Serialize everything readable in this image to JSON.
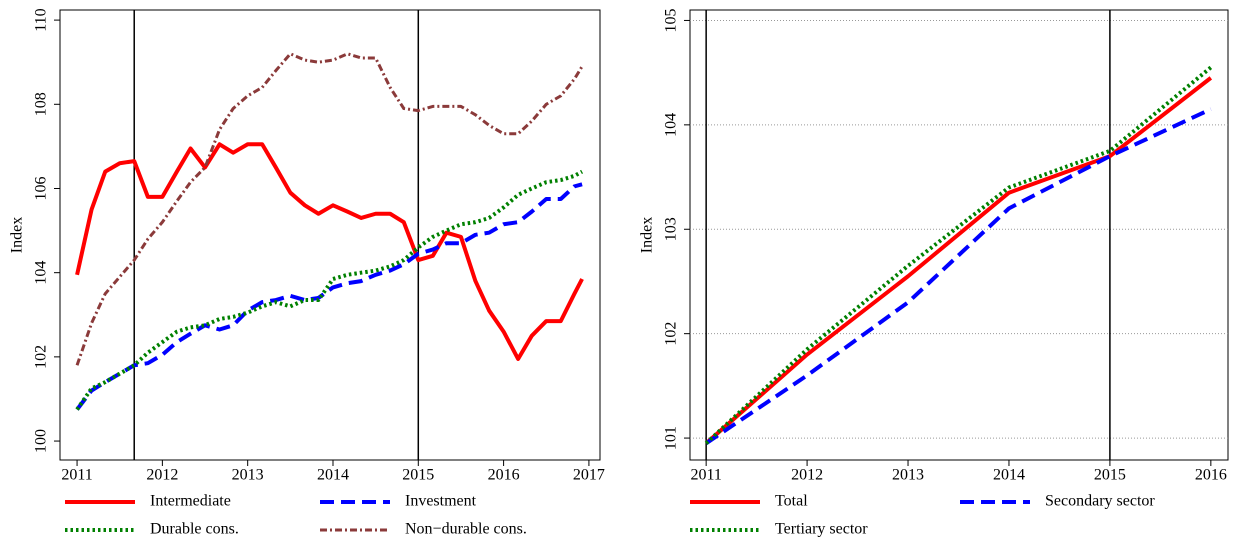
{
  "chart_data": [
    {
      "type": "line",
      "ylabel": "Index",
      "x": [
        2011,
        2011.17,
        2011.33,
        2011.5,
        2011.67,
        2011.83,
        2012,
        2012.17,
        2012.33,
        2012.5,
        2012.67,
        2012.83,
        2013,
        2013.17,
        2013.33,
        2013.5,
        2013.67,
        2013.83,
        2014,
        2014.17,
        2014.33,
        2014.5,
        2014.67,
        2014.83,
        2015,
        2015.17,
        2015.33,
        2015.5,
        2015.67,
        2015.83,
        2016,
        2016.17,
        2016.33,
        2016.5,
        2016.67,
        2016.83,
        2016.92
      ],
      "series": [
        {
          "name": "Intermediate",
          "color": "#ff0000",
          "style": "solid",
          "values": [
            103.95,
            105.5,
            106.4,
            106.6,
            106.65,
            105.8,
            105.8,
            106.4,
            106.95,
            106.5,
            107.05,
            106.85,
            107.05,
            107.05,
            106.5,
            105.9,
            105.6,
            105.4,
            105.6,
            105.45,
            105.3,
            105.4,
            105.4,
            105.2,
            104.3,
            104.4,
            104.95,
            104.85,
            103.8,
            103.1,
            102.6,
            101.95,
            102.5,
            102.85,
            102.85,
            103.5,
            103.85
          ]
        },
        {
          "name": "Investment",
          "color": "#0000ff",
          "style": "dashed",
          "values": [
            100.75,
            101.2,
            101.4,
            101.6,
            101.8,
            101.85,
            102.05,
            102.35,
            102.55,
            102.75,
            102.65,
            102.75,
            103.1,
            103.3,
            103.35,
            103.45,
            103.35,
            103.4,
            103.65,
            103.75,
            103.8,
            103.95,
            104.05,
            104.2,
            104.45,
            104.55,
            104.7,
            104.7,
            104.9,
            104.95,
            105.15,
            105.2,
            105.45,
            105.75,
            105.75,
            106.05,
            106.1
          ]
        },
        {
          "name": "Durable cons.",
          "color": "#008000",
          "style": "dotted",
          "values": [
            100.75,
            101.25,
            101.4,
            101.6,
            101.8,
            102.1,
            102.35,
            102.6,
            102.7,
            102.75,
            102.9,
            102.95,
            103.05,
            103.2,
            103.3,
            103.2,
            103.35,
            103.35,
            103.85,
            103.95,
            104.0,
            104.05,
            104.15,
            104.3,
            104.6,
            104.85,
            105.0,
            105.15,
            105.2,
            105.3,
            105.55,
            105.85,
            106.0,
            106.15,
            106.2,
            106.3,
            106.4
          ]
        },
        {
          "name": "Non−durable cons.",
          "color": "#8b3a3a",
          "style": "dashdot",
          "values": [
            101.8,
            102.8,
            103.5,
            103.9,
            104.3,
            104.8,
            105.2,
            105.7,
            106.15,
            106.5,
            107.4,
            107.9,
            108.2,
            108.4,
            108.8,
            109.2,
            109.05,
            109.0,
            109.05,
            109.2,
            109.1,
            109.1,
            108.4,
            107.9,
            107.85,
            107.95,
            107.95,
            107.95,
            107.75,
            107.5,
            107.3,
            107.3,
            107.6,
            108.0,
            108.2,
            108.6,
            108.9
          ]
        }
      ],
      "vlines": [
        2011.67,
        2015
      ],
      "xlim": [
        2010.8,
        2017.13
      ],
      "xticks": [
        2011,
        2012,
        2013,
        2014,
        2015,
        2016,
        2017
      ],
      "ylim": [
        99.55,
        110.24
      ],
      "yticks": [
        100,
        102,
        104,
        106,
        108,
        110
      ],
      "grid": false
    },
    {
      "type": "line",
      "ylabel": "Index",
      "x": [
        2011,
        2012,
        2013,
        2014,
        2015,
        2016
      ],
      "series": [
        {
          "name": "Total",
          "color": "#ff0000",
          "style": "solid",
          "values": [
            100.95,
            101.8,
            102.55,
            103.35,
            103.7,
            104.45
          ]
        },
        {
          "name": "Secondary sector",
          "color": "#0000ff",
          "style": "dashed",
          "values": [
            100.95,
            101.6,
            102.3,
            103.2,
            103.7,
            104.15
          ]
        },
        {
          "name": "Tertiary sector",
          "color": "#008000",
          "style": "dotted",
          "values": [
            100.95,
            101.85,
            102.65,
            103.4,
            103.75,
            104.55
          ]
        }
      ],
      "vlines": [
        2011,
        2015
      ],
      "xlim": [
        2010.84,
        2016.17
      ],
      "xticks": [
        2011,
        2012,
        2013,
        2014,
        2015,
        2016
      ],
      "ylim": [
        100.79,
        105.1
      ],
      "yticks": [
        101,
        102,
        103,
        104,
        105
      ],
      "grid": true
    }
  ]
}
